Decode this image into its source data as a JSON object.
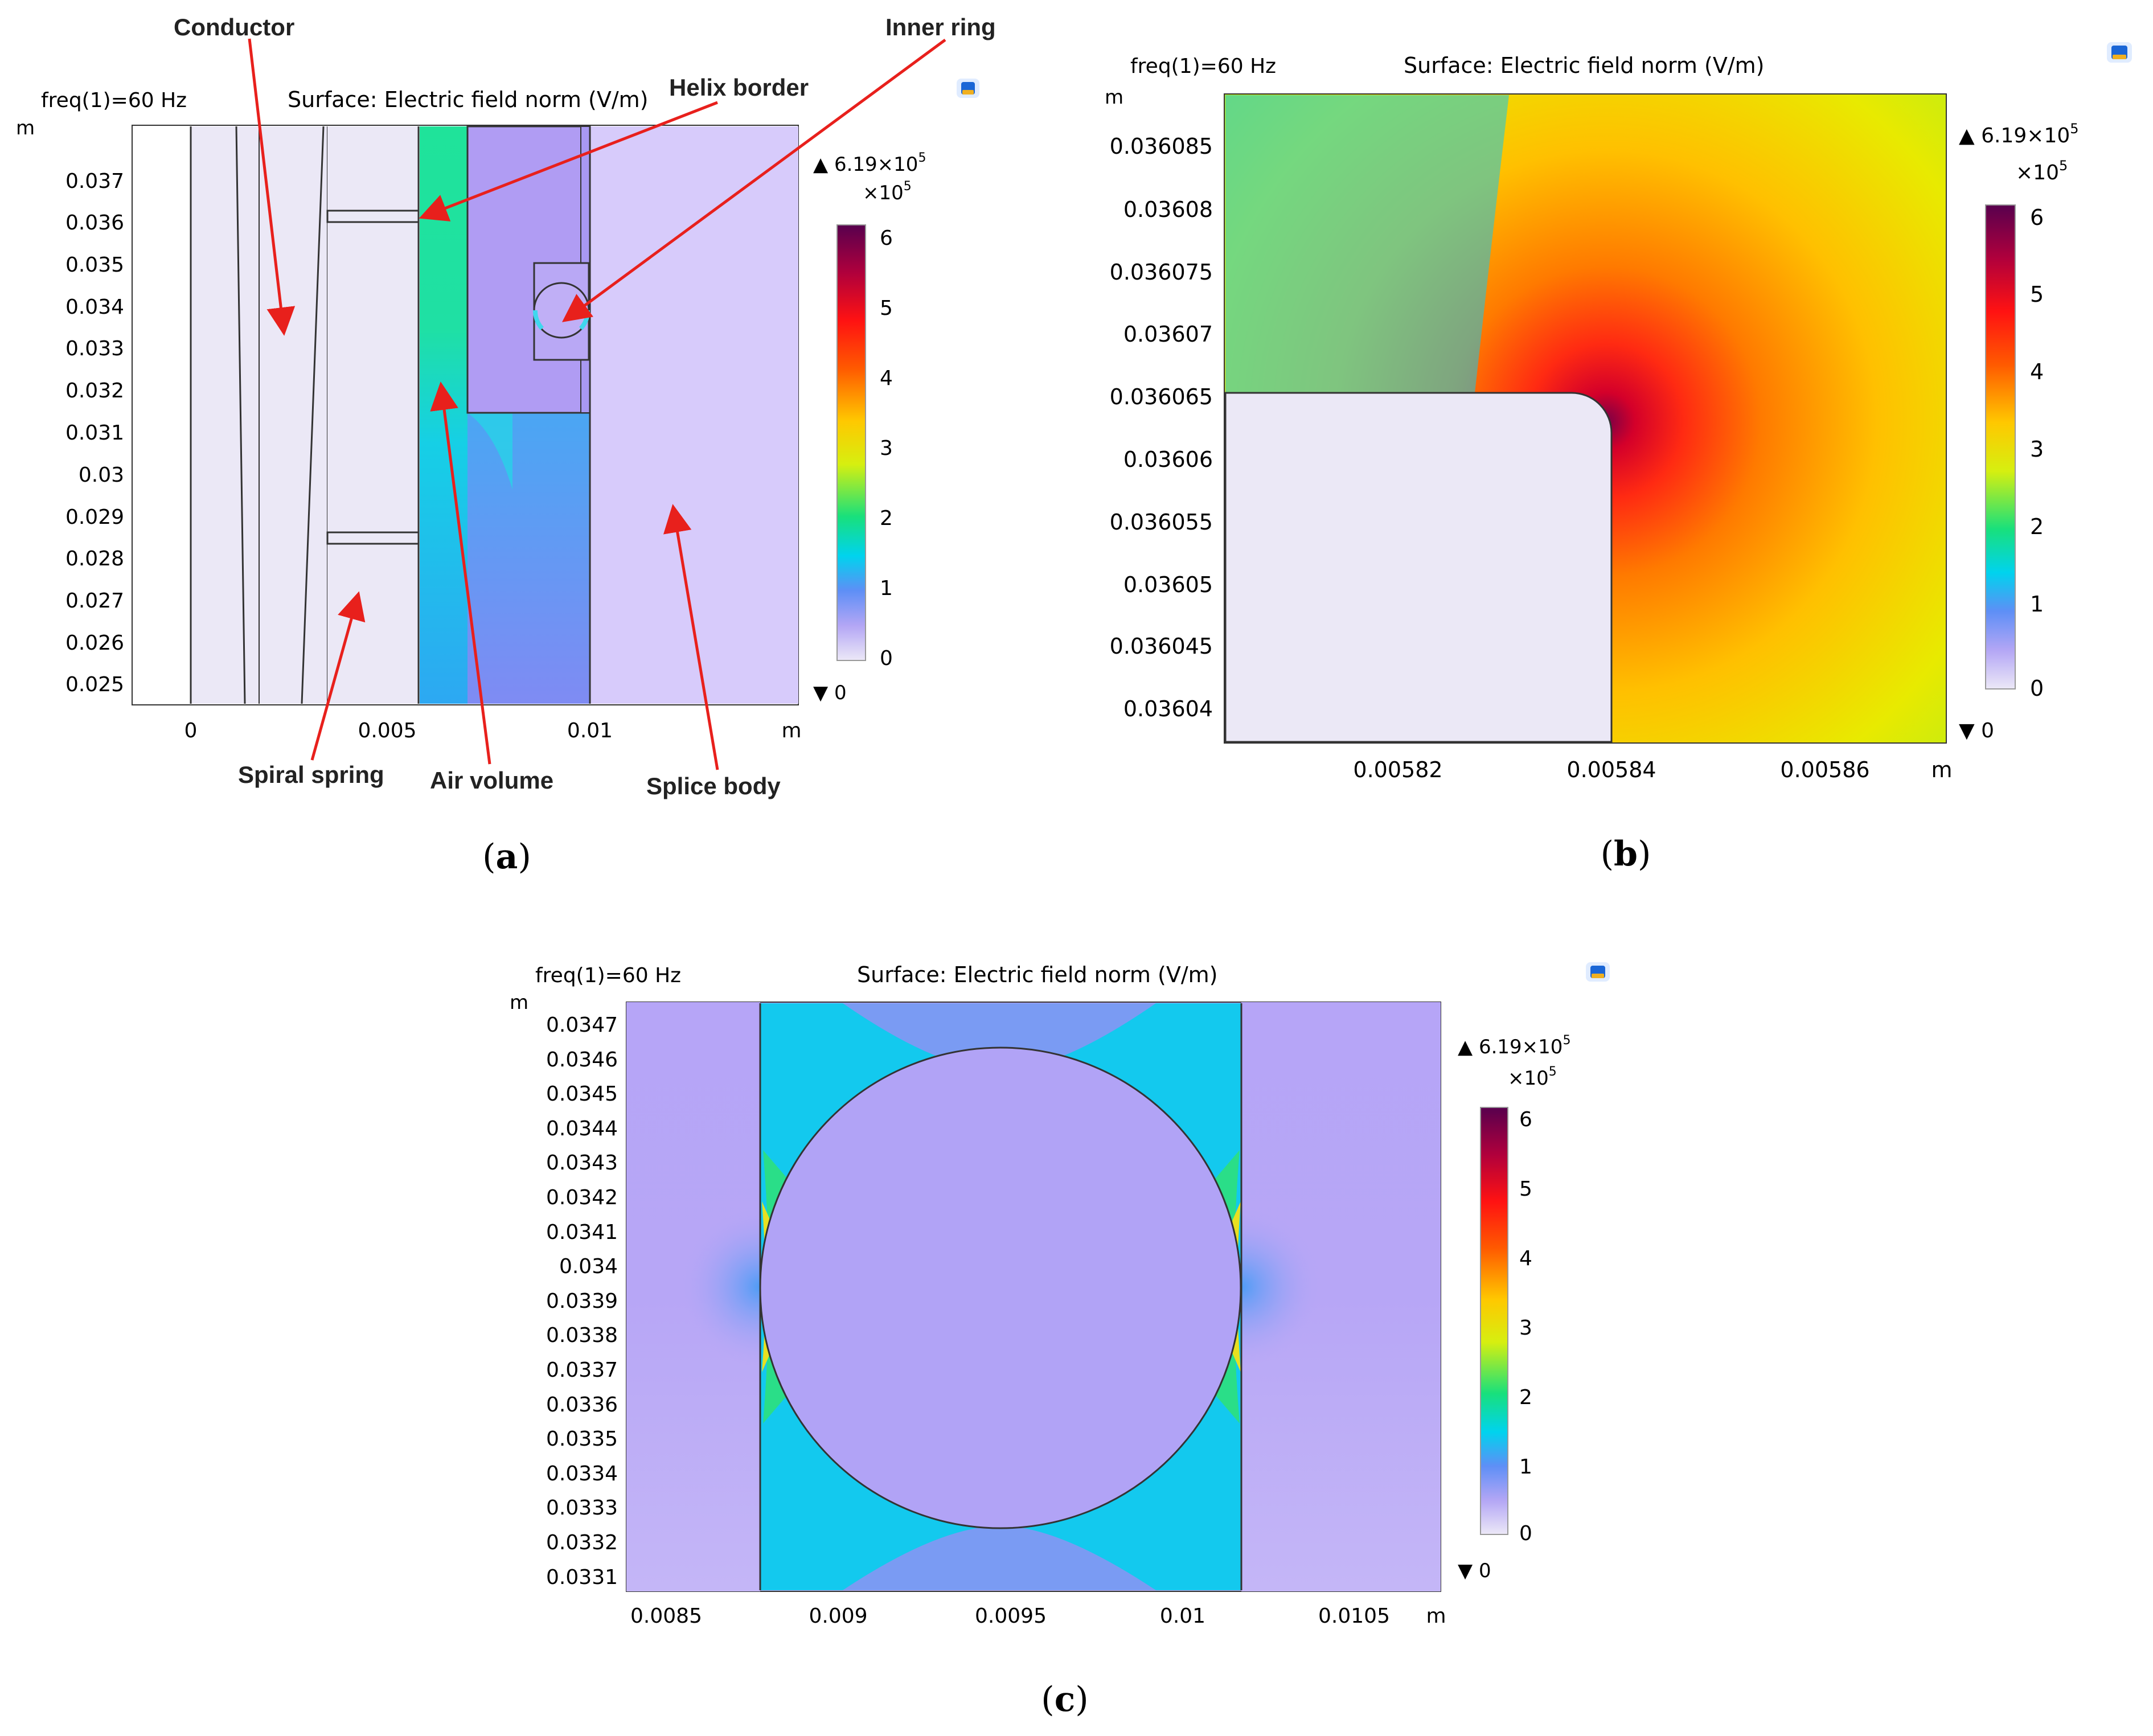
{
  "panels": {
    "a": {
      "caption_letter": "a",
      "freq": "freq(1)=60 Hz",
      "surface": "Surface: Electric field norm (V/m)",
      "yunit": "m",
      "xunit": "m",
      "yticks": [
        "0.037",
        "0.036",
        "0.035",
        "0.034",
        "0.033",
        "0.032",
        "0.031",
        "0.03",
        "0.029",
        "0.028",
        "0.027",
        "0.026",
        "0.025"
      ],
      "xticks": [
        "0",
        "0.005",
        "0.01"
      ],
      "colorbar": {
        "max_label": "6.19×10",
        "max_exp": "5",
        "scale_label": "×10",
        "scale_exp": "5",
        "ticks": [
          "6",
          "5",
          "4",
          "3",
          "2",
          "1",
          "0"
        ],
        "min_label": "0"
      },
      "annotations": {
        "conductor": "Conductor",
        "inner_ring": "Inner ring",
        "helix_border": "Helix border",
        "spiral_spring": "Spiral spring",
        "air_volume": "Air volume",
        "splice_body": "Splice body"
      }
    },
    "b": {
      "caption_letter": "b",
      "freq": "freq(1)=60 Hz",
      "surface": "Surface: Electric field norm (V/m)",
      "yunit": "m",
      "xunit": "m",
      "yticks": [
        "0.036085",
        "0.03608",
        "0.036075",
        "0.03607",
        "0.036065",
        "0.03606",
        "0.036055",
        "0.03605",
        "0.036045",
        "0.03604"
      ],
      "xticks": [
        "0.00582",
        "0.00584",
        "0.00586"
      ],
      "colorbar": {
        "max_label": "6.19×10",
        "max_exp": "5",
        "scale_label": "×10",
        "scale_exp": "5",
        "ticks": [
          "6",
          "5",
          "4",
          "3",
          "2",
          "1",
          "0"
        ],
        "min_label": "0"
      }
    },
    "c": {
      "caption_letter": "c",
      "freq": "freq(1)=60 Hz",
      "surface": "Surface: Electric field norm (V/m)",
      "yunit": "m",
      "xunit": "m",
      "yticks": [
        "0.0347",
        "0.0346",
        "0.0345",
        "0.0344",
        "0.0343",
        "0.0342",
        "0.0341",
        "0.034",
        "0.0339",
        "0.0338",
        "0.0337",
        "0.0336",
        "0.0335",
        "0.0334",
        "0.0333",
        "0.0332",
        "0.0331"
      ],
      "xticks": [
        "0.0085",
        "0.009",
        "0.0095",
        "0.01",
        "0.0105"
      ],
      "colorbar": {
        "max_label": "6.19×10",
        "max_exp": "5",
        "scale_label": "×10",
        "scale_exp": "5",
        "ticks": [
          "6",
          "5",
          "4",
          "3",
          "2",
          "1",
          "0"
        ],
        "min_label": "0"
      }
    }
  },
  "colors": {
    "colormap": [
      "#ece8f7",
      "#ad9ff4",
      "#3fa0f6",
      "#00dfe8",
      "#1de27a",
      "#c9ef1e",
      "#ffd400",
      "#ff7b00",
      "#ff1010",
      "#b50035",
      "#5a0050"
    ],
    "splice_body": "#d7cbfb",
    "conductor": "#ebe8f6",
    "annotation_arrow": "#e8201c"
  }
}
